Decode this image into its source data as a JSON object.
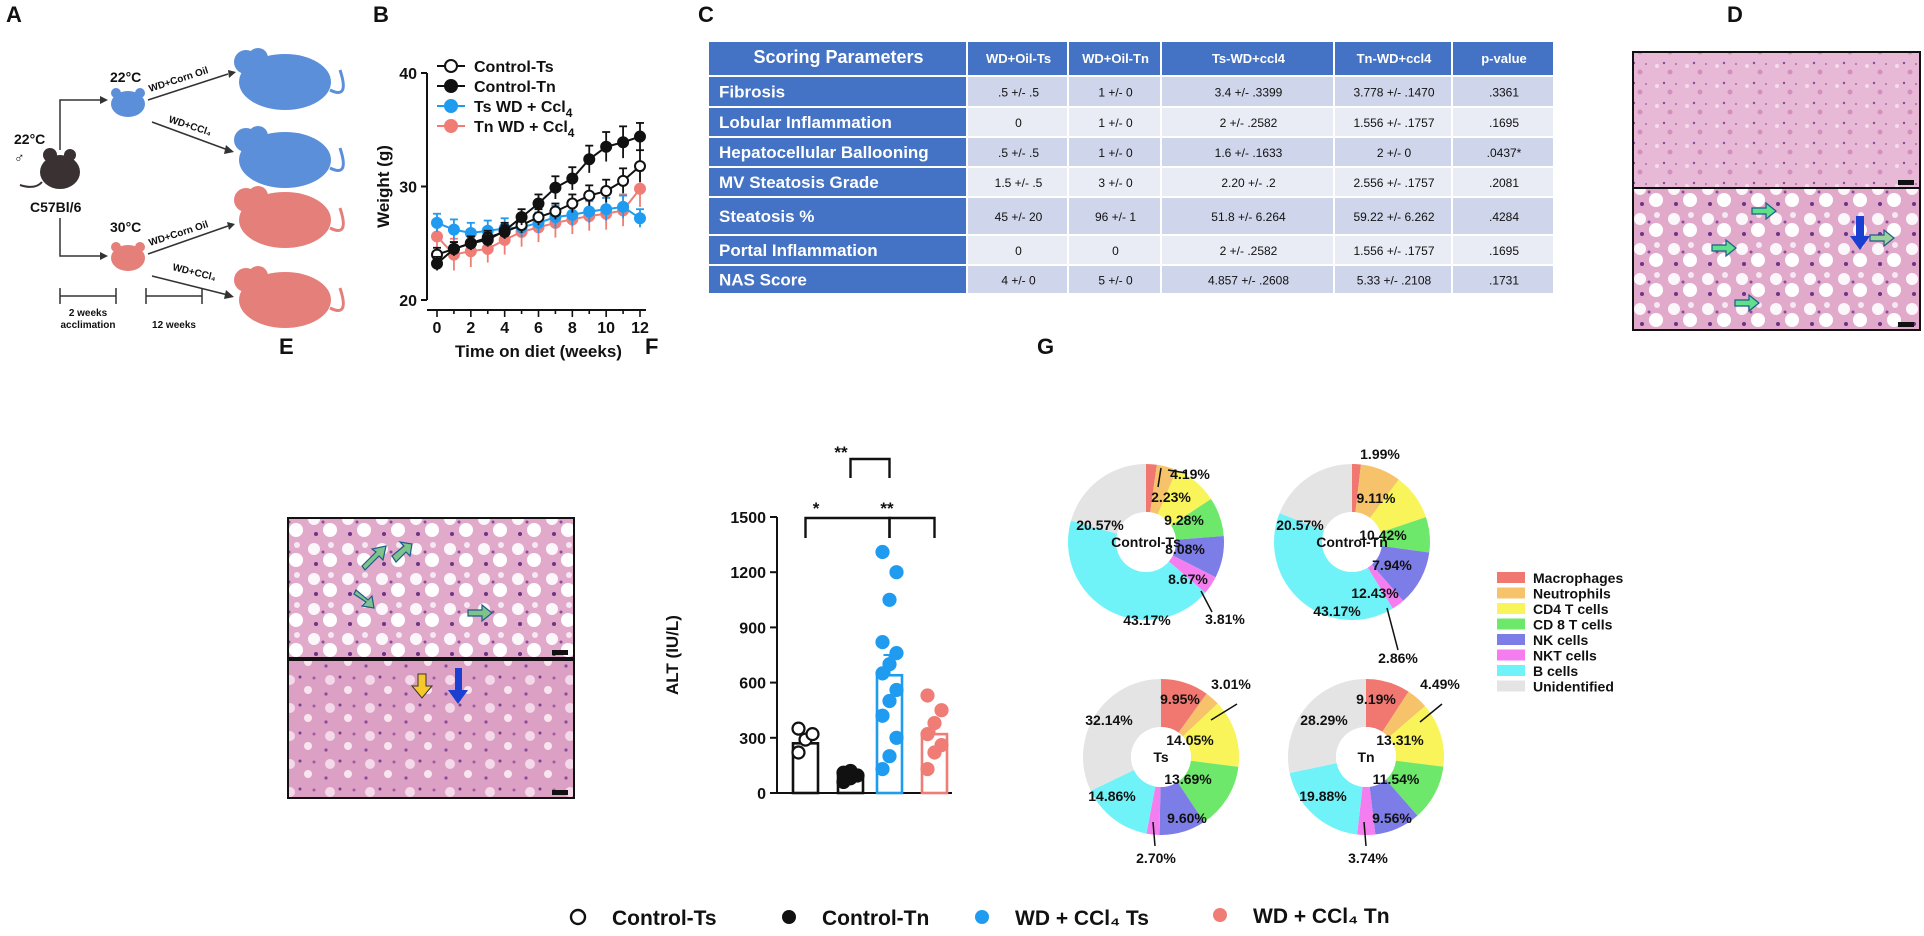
{
  "panels": {
    "a": "A",
    "b": "B",
    "c": "C",
    "d": "D",
    "e": "E",
    "f": "F",
    "g": "G"
  },
  "panel_a": {
    "start_temp": "22°C",
    "male": "♂",
    "strain": "C57Bl/6",
    "temp_top": "22°C",
    "temp_bottom": "30°C",
    "arrow1": "WD+Corn Oil",
    "arrow2": "WD+CCl₄",
    "arrow3": "WD+Corn Oil",
    "arrow4": "WD+CCl₄",
    "timeline1_a": "2 weeks",
    "timeline1_b": "acclimation",
    "timeline2": "12 weeks",
    "colors": {
      "ts": "#5b8fd9",
      "tn": "#e57f7a",
      "base": "#3a3232"
    }
  },
  "table": {
    "headers": [
      "Scoring Parameters",
      "WD+Oil-Ts",
      "WD+Oil-Tn",
      "Ts-WD+ccl4",
      "Tn-WD+ccl4",
      "p-value"
    ],
    "rows": [
      {
        "label": "Fibrosis",
        "cells": [
          ".5 +/- .5",
          "1 +/- 0",
          "3.4 +/- .3399",
          "3.778 +/- .1470",
          ".3361"
        ]
      },
      {
        "label": "Lobular Inflammation",
        "cells": [
          "0",
          "1 +/- 0",
          "2 +/- .2582",
          "1.556 +/- .1757",
          ".1695"
        ]
      },
      {
        "label": "Hepatocellular Ballooning",
        "cells": [
          ".5 +/- .5",
          "1 +/- 0",
          "1.6 +/- .1633",
          "2 +/- 0",
          ".0437*"
        ]
      },
      {
        "label": "MV Steatosis Grade",
        "cells": [
          "1.5 +/- .5",
          "3 +/- 0",
          "2.20 +/- .2",
          "2.556 +/- .1757",
          ".2081"
        ]
      },
      {
        "label": "Steatosis %",
        "cells": [
          "45 +/- 20",
          "96 +/- 1",
          "51.8 +/- 6.264",
          "59.22 +/- 6.262",
          ".4284"
        ]
      },
      {
        "label": "Portal Inflammation",
        "cells": [
          "0",
          "0",
          "2 +/- .2582",
          "1.556 +/- .1757",
          ".1695"
        ]
      },
      {
        "label": "NAS Score",
        "cells": [
          "4 +/- 0",
          "5 +/- 0",
          "4.857 +/- .2608",
          "5.33 +/- .2108",
          ".1731"
        ]
      }
    ],
    "colors": {
      "header": "#4472c4",
      "label": "#4472c4",
      "row_a": "#cfd5ea",
      "row_b": "#e9ebf5"
    }
  },
  "legend_bottom": [
    "Control-Ts",
    "Control-Tn",
    "WD + CCl₄ Ts",
    "WD + CCl₄ Tn"
  ],
  "chart_data": [
    {
      "type": "line",
      "id": "B",
      "title": "",
      "xlabel": "Time on diet (weeks)",
      "ylabel": "Weight (g)",
      "xlim": [
        0,
        12
      ],
      "ylim": [
        20,
        40
      ],
      "xticks": [
        0,
        2,
        4,
        6,
        8,
        10,
        12
      ],
      "yticks": [
        20,
        30,
        40
      ],
      "x": [
        0,
        1,
        2,
        3,
        4,
        5,
        6,
        7,
        8,
        9,
        10,
        11,
        12
      ],
      "series": [
        {
          "name": "Control-Ts",
          "color": "#111111",
          "fill": "#ffffff",
          "values": [
            24.0,
            24.5,
            25.0,
            25.5,
            26.0,
            26.6,
            27.3,
            27.8,
            28.5,
            29.2,
            29.6,
            30.5,
            31.8
          ],
          "errors": [
            0.6,
            0.6,
            0.6,
            0.6,
            0.6,
            0.7,
            0.7,
            0.7,
            0.8,
            0.9,
            1.0,
            1.1,
            1.4
          ]
        },
        {
          "name": "Control-Tn",
          "color": "#111111",
          "fill": "#111111",
          "values": [
            23.2,
            24.5,
            25.0,
            25.3,
            26.1,
            27.3,
            28.5,
            29.9,
            30.7,
            32.4,
            33.5,
            33.9,
            34.4
          ],
          "errors": [
            0.6,
            0.6,
            0.6,
            0.6,
            0.7,
            0.7,
            0.8,
            1.0,
            1.0,
            1.2,
            1.3,
            1.4,
            1.2
          ]
        },
        {
          "name": "Ts WD + Ccl4",
          "color": "#1f9bf0",
          "fill": "#1f9bf0",
          "values": [
            26.8,
            26.2,
            25.9,
            26.1,
            26.3,
            26.4,
            26.8,
            27.3,
            27.5,
            27.8,
            28.0,
            28.2,
            27.2
          ],
          "errors": [
            0.8,
            0.9,
            0.9,
            0.9,
            0.9,
            0.9,
            0.9,
            1.0,
            1.0,
            1.0,
            1.0,
            1.0,
            0.8
          ]
        },
        {
          "name": "Tn WD + Ccl4",
          "color": "#f07d75",
          "fill": "#f07d75",
          "values": [
            25.6,
            24.0,
            24.3,
            24.5,
            25.3,
            26.0,
            26.4,
            26.8,
            27.1,
            27.4,
            27.6,
            27.9,
            29.8
          ],
          "errors": [
            1.4,
            1.4,
            1.4,
            1.2,
            1.3,
            1.3,
            1.3,
            1.3,
            1.3,
            1.3,
            1.4,
            1.4,
            1.6
          ]
        }
      ],
      "legend": [
        "Control-Ts",
        "Control-Tn",
        "Ts WD + Ccl",
        "Tn WD + Ccl"
      ],
      "legend_sub": "4"
    },
    {
      "type": "bar",
      "id": "F",
      "ylabel": "ALT (IU/L)",
      "ylim": [
        0,
        1500
      ],
      "yticks": [
        0,
        300,
        600,
        900,
        1200,
        1500
      ],
      "categories": [
        "Control-Ts",
        "Control-Tn",
        "WD + CCl4 Ts",
        "WD + CCl4 Tn"
      ],
      "values": [
        270,
        95,
        640,
        320
      ],
      "errors": [
        40,
        15,
        110,
        50
      ],
      "colors": [
        "#111111",
        "#111111",
        "#1f9bf0",
        "#f07d75"
      ],
      "points": [
        [
          220,
          290,
          320,
          350
        ],
        [
          60,
          80,
          95,
          110,
          120
        ],
        [
          130,
          200,
          300,
          420,
          500,
          560,
          650,
          700,
          760,
          820,
          1050,
          1200,
          1310
        ],
        [
          130,
          220,
          260,
          320,
          380,
          450,
          530
        ]
      ],
      "significance": [
        {
          "pair": [
            1,
            2
          ],
          "label": "**"
        },
        {
          "pair": [
            0,
            2
          ],
          "label": "*"
        },
        {
          "pair": [
            2,
            3
          ],
          "label": "**"
        }
      ]
    },
    {
      "type": "pie",
      "id": "G",
      "legend": [
        "Macrophages",
        "Neutrophils",
        "CD4 T cells",
        "CD 8 T cells",
        "NK cells",
        "NKT cells",
        "B cells",
        "Unidentified"
      ],
      "colors": [
        "#f07870",
        "#f7c36a",
        "#f8f45a",
        "#6ee86a",
        "#7d7de8",
        "#f47ef0",
        "#6ff3f8",
        "#e4e4e4"
      ],
      "pies": [
        {
          "center_label": "Control-Ts",
          "center_color": "#1565d8",
          "values": [
            2.23,
            4.19,
            9.28,
            8.08,
            8.67,
            3.81,
            43.17,
            20.57
          ],
          "labels": [
            "2.23%",
            "4.19%",
            "9.28%",
            "8.08%",
            "8.67%",
            "3.81%",
            "43.17%",
            "20.57%"
          ]
        },
        {
          "center_label": "Control-Tn",
          "center_color": "#e53935",
          "values": [
            1.99,
            9.11,
            10.42,
            7.94,
            12.43,
            2.86,
            43.17,
            20.57
          ],
          "labels": [
            "1.99%",
            "9.11%",
            "10.42%",
            "7.94%",
            "12.43%",
            "2.86%",
            "43.17%",
            "20.57%"
          ]
        },
        {
          "center_label": "Ts",
          "center_color": "#1565d8",
          "values": [
            9.95,
            3.01,
            14.05,
            13.69,
            9.6,
            2.7,
            14.86,
            32.14
          ],
          "labels": [
            "9.95%",
            "3.01%",
            "14.05%",
            "13.69%",
            "9.60%",
            "2.70%",
            "14.86%",
            "32.14%"
          ]
        },
        {
          "center_label": "Tn",
          "center_color": "#e040b0",
          "values": [
            9.19,
            4.49,
            13.31,
            11.54,
            9.56,
            3.74,
            19.88,
            28.29
          ],
          "labels": [
            "9.19%",
            "4.49%",
            "13.31%",
            "11.54%",
            "9.56%",
            "3.74%",
            "19.88%",
            "28.29%"
          ]
        }
      ]
    }
  ]
}
